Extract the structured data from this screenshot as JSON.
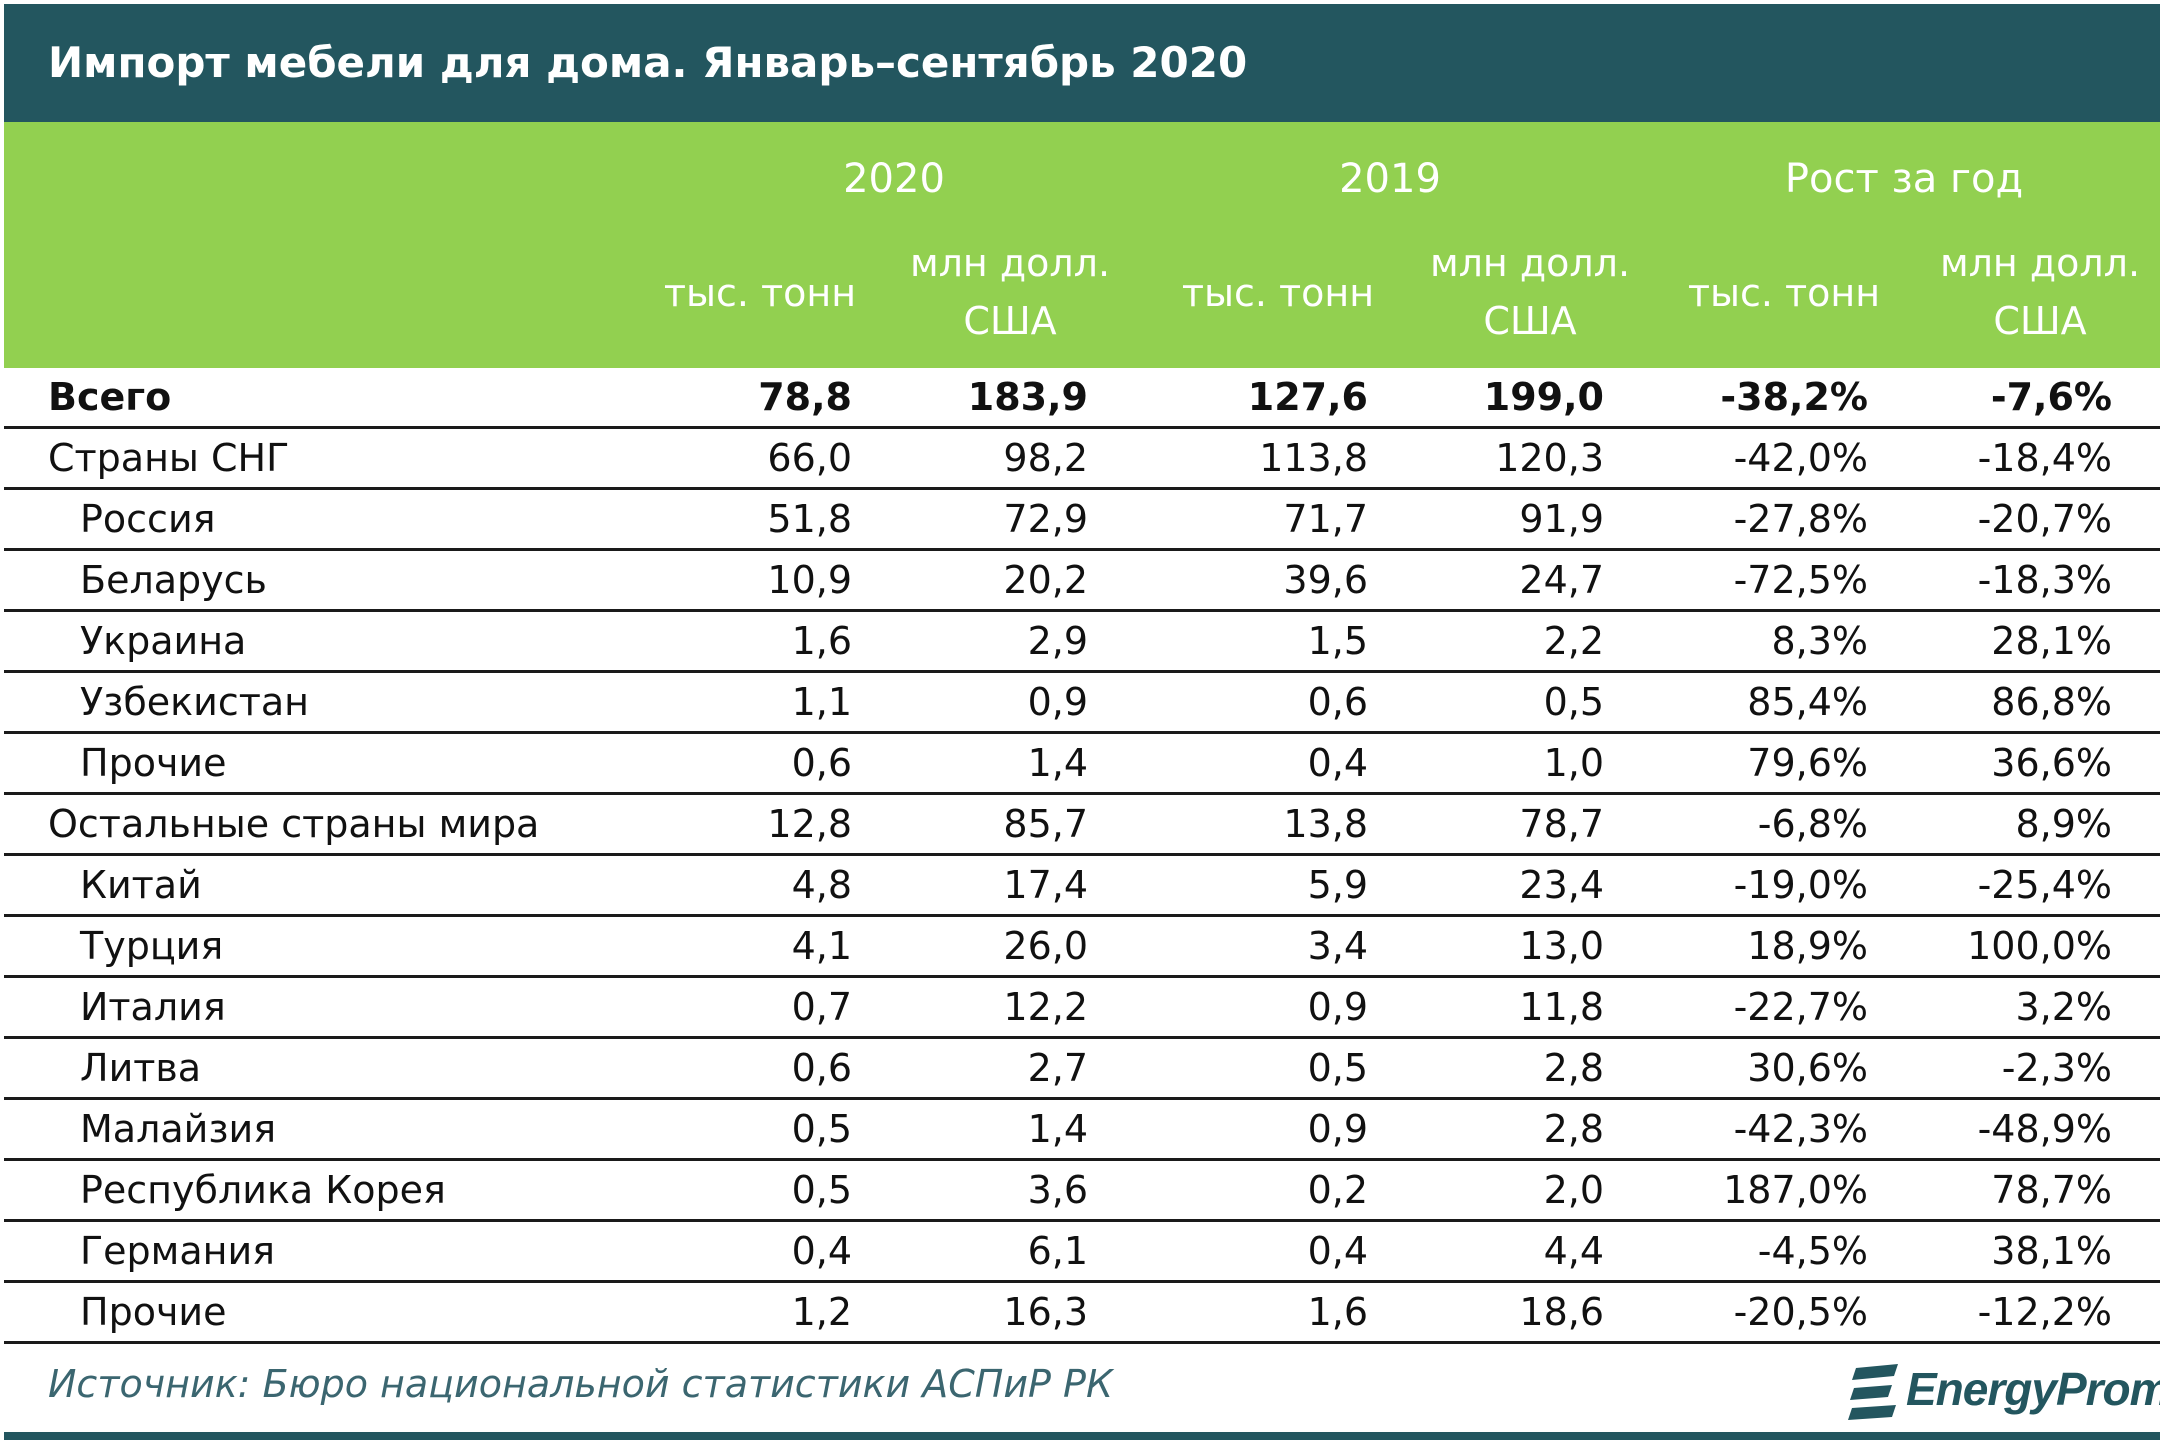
{
  "title": "Импорт мебели для дома. Январь–сентябрь 2020",
  "chart_data": {
    "type": "table",
    "group_headers": [
      "2020",
      "2019",
      "Рост за год"
    ],
    "unit_headers": [
      "тыс. тонн",
      "млн долл.\nСША",
      "тыс. тонн",
      "млн долл.\nСША",
      "тыс. тонн",
      "млн долл.\nСША"
    ],
    "rows": [
      {
        "name": "Всего",
        "bold": true,
        "level": 0,
        "values": [
          "78,8",
          "183,9",
          "127,6",
          "199,0",
          "-38,2%",
          "-7,6%"
        ]
      },
      {
        "name": "Страны СНГ",
        "bold": false,
        "level": 0,
        "values": [
          "66,0",
          "98,2",
          "113,8",
          "120,3",
          "-42,0%",
          "-18,4%"
        ]
      },
      {
        "name": "Россия",
        "bold": false,
        "level": 1,
        "values": [
          "51,8",
          "72,9",
          "71,7",
          "91,9",
          "-27,8%",
          "-20,7%"
        ]
      },
      {
        "name": "Беларусь",
        "bold": false,
        "level": 1,
        "values": [
          "10,9",
          "20,2",
          "39,6",
          "24,7",
          "-72,5%",
          "-18,3%"
        ]
      },
      {
        "name": "Украина",
        "bold": false,
        "level": 1,
        "values": [
          "1,6",
          "2,9",
          "1,5",
          "2,2",
          "8,3%",
          "28,1%"
        ]
      },
      {
        "name": "Узбекистан",
        "bold": false,
        "level": 1,
        "values": [
          "1,1",
          "0,9",
          "0,6",
          "0,5",
          "85,4%",
          "86,8%"
        ]
      },
      {
        "name": "Прочие",
        "bold": false,
        "level": 1,
        "values": [
          "0,6",
          "1,4",
          "0,4",
          "1,0",
          "79,6%",
          "36,6%"
        ]
      },
      {
        "name": "Остальные страны мира",
        "bold": false,
        "level": 0,
        "values": [
          "12,8",
          "85,7",
          "13,8",
          "78,7",
          "-6,8%",
          "8,9%"
        ]
      },
      {
        "name": "Китай",
        "bold": false,
        "level": 1,
        "values": [
          "4,8",
          "17,4",
          "5,9",
          "23,4",
          "-19,0%",
          "-25,4%"
        ]
      },
      {
        "name": "Турция",
        "bold": false,
        "level": 1,
        "values": [
          "4,1",
          "26,0",
          "3,4",
          "13,0",
          "18,9%",
          "100,0%"
        ]
      },
      {
        "name": "Италия",
        "bold": false,
        "level": 1,
        "values": [
          "0,7",
          "12,2",
          "0,9",
          "11,8",
          "-22,7%",
          "3,2%"
        ]
      },
      {
        "name": "Литва",
        "bold": false,
        "level": 1,
        "values": [
          "0,6",
          "2,7",
          "0,5",
          "2,8",
          "30,6%",
          "-2,3%"
        ]
      },
      {
        "name": "Малайзия",
        "bold": false,
        "level": 1,
        "values": [
          "0,5",
          "1,4",
          "0,9",
          "2,8",
          "-42,3%",
          "-48,9%"
        ]
      },
      {
        "name": "Республика Корея",
        "bold": false,
        "level": 1,
        "values": [
          "0,5",
          "3,6",
          "0,2",
          "2,0",
          "187,0%",
          "78,7%"
        ]
      },
      {
        "name": "Германия",
        "bold": false,
        "level": 1,
        "values": [
          "0,4",
          "6,1",
          "0,4",
          "4,4",
          "-4,5%",
          "38,1%"
        ]
      },
      {
        "name": "Прочие",
        "bold": false,
        "level": 1,
        "values": [
          "1,2",
          "16,3",
          "1,6",
          "18,6",
          "-20,5%",
          "-12,2%"
        ]
      }
    ]
  },
  "source": "Источник: Бюро национальной статистики АСПиР РК",
  "logo": {
    "text": "EnergyProm",
    "icon": "energyprom-logo-icon"
  },
  "colors": {
    "title_bg": "#23565f",
    "header_bg": "#92d050",
    "header_text": "#ffffff",
    "source_text": "#3b6670"
  }
}
